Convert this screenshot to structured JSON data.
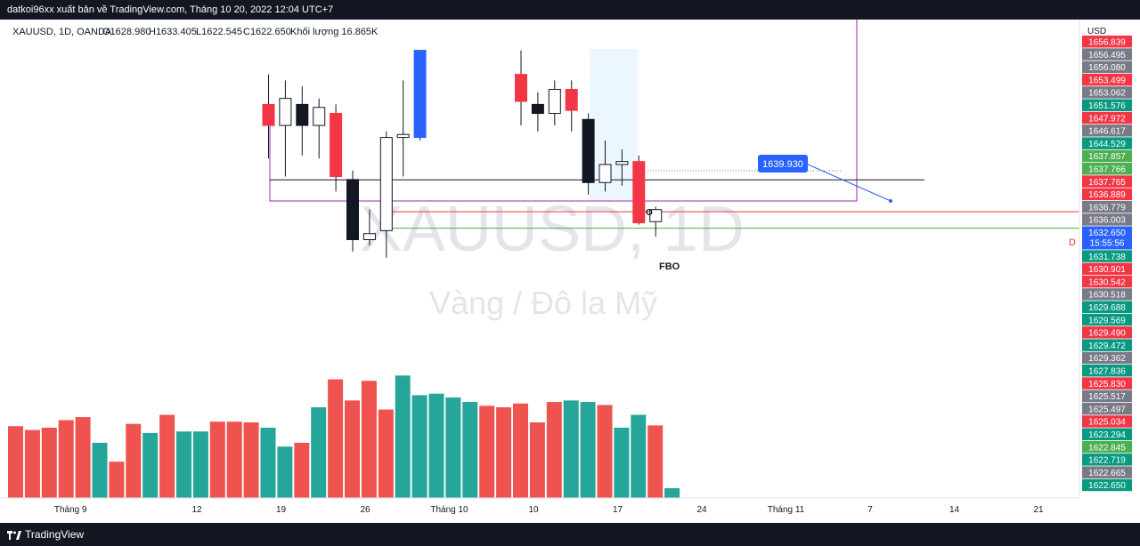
{
  "header": {
    "attribution": "datkoi96xx xuất bản về TradingView.com, Tháng 10 20, 2022 12:04 UTC+7"
  },
  "footer": {
    "brand": "TradingView"
  },
  "legend": {
    "symbol_line": "XAUUSD, 1D, OANDA",
    "open": "O1628.980",
    "high": "H1633.405",
    "low": "L1622.545",
    "close": "C1622.650",
    "volume": "Khối lượng 16.865K"
  },
  "watermark": {
    "symbol": "XAUUSD, 1D",
    "description": "Vàng / Đô la Mỹ"
  },
  "price_axis": {
    "currency": "USD",
    "labels": [
      {
        "text": "1656.839",
        "color": "#f23645"
      },
      {
        "text": "1656.495",
        "color": "#787b86"
      },
      {
        "text": "1656.080",
        "color": "#787b86"
      },
      {
        "text": "1653.499",
        "color": "#f23645"
      },
      {
        "text": "1653.062",
        "color": "#787b86"
      },
      {
        "text": "1651.576",
        "color": "#089981"
      },
      {
        "text": "1647.972",
        "color": "#f23645"
      },
      {
        "text": "1646.617",
        "color": "#787b86"
      },
      {
        "text": "1644.529",
        "color": "#089981"
      },
      {
        "text": "1637.857",
        "color": "#4caf50"
      },
      {
        "text": "1637.766",
        "color": "#4caf50"
      },
      {
        "text": "1637.765",
        "color": "#f23645"
      },
      {
        "text": "1636.889",
        "color": "#f23645"
      },
      {
        "text": "1636.779",
        "color": "#787b86"
      },
      {
        "text": "1636.003",
        "color": "#787b86"
      },
      {
        "text": "1632.650",
        "color": "#2962ff",
        "sub": "15:55:56"
      },
      {
        "text": "1631.738",
        "color": "#089981"
      },
      {
        "text": "1630.901",
        "color": "#f23645"
      },
      {
        "text": "1630.542",
        "color": "#f23645"
      },
      {
        "text": "1630.518",
        "color": "#787b86"
      },
      {
        "text": "1629.688",
        "color": "#089981"
      },
      {
        "text": "1629.569",
        "color": "#089981"
      },
      {
        "text": "1629.490",
        "color": "#f23645"
      },
      {
        "text": "1629.472",
        "color": "#089981"
      },
      {
        "text": "1629.362",
        "color": "#787b86"
      },
      {
        "text": "1627.836",
        "color": "#089981"
      },
      {
        "text": "1625.830",
        "color": "#f23645"
      },
      {
        "text": "1625.517",
        "color": "#787b86"
      },
      {
        "text": "1625.497",
        "color": "#787b86"
      },
      {
        "text": "1625.034",
        "color": "#f23645"
      },
      {
        "text": "1623.294",
        "color": "#089981"
      },
      {
        "text": "1622.845",
        "color": "#4caf50"
      },
      {
        "text": "1622.719",
        "color": "#089981"
      },
      {
        "text": "1622.665",
        "color": "#787b86"
      },
      {
        "text": "1622.650",
        "color": "#089981"
      }
    ]
  },
  "annotations": {
    "price_callout": "1639.930",
    "fbo": "FBO",
    "o_mark": "O",
    "d_mark": "D"
  },
  "colors": {
    "up": "#089981",
    "down": "#f23645",
    "accent": "#2962ff",
    "purple": "#9c27b0",
    "dark": "#131722"
  },
  "chart_data": {
    "type": "candlestick",
    "candles": [
      {
        "index": 15,
        "open": 1655,
        "high": 1672,
        "low": 1644,
        "close": 1662,
        "direction": "down"
      },
      {
        "index": 16,
        "open": 1655,
        "high": 1670,
        "low": 1638,
        "close": 1664,
        "direction": "up"
      },
      {
        "index": 17,
        "open": 1662,
        "high": 1668,
        "low": 1645,
        "close": 1655,
        "direction": "down"
      },
      {
        "index": 18,
        "open": 1655,
        "high": 1664,
        "low": 1644,
        "close": 1661,
        "direction": "up"
      },
      {
        "index": 19,
        "open": 1659,
        "high": 1662,
        "low": 1633,
        "close": 1638,
        "direction": "down"
      },
      {
        "index": 20,
        "open": 1637,
        "high": 1640,
        "low": 1613,
        "close": 1617,
        "direction": "down"
      },
      {
        "index": 21,
        "open": 1619,
        "high": 1627,
        "low": 1615,
        "close": 1617,
        "direction": "up"
      },
      {
        "index": 22,
        "open": 1620,
        "high": 1653,
        "low": 1611,
        "close": 1651,
        "direction": "up"
      },
      {
        "index": 23,
        "open": 1651,
        "high": 1670,
        "low": 1638,
        "close": 1652,
        "direction": "up"
      },
      {
        "index": 24,
        "open": 1651,
        "high": 1680,
        "low": 1650,
        "close": 1680,
        "direction": "up"
      },
      {
        "index": 30,
        "open": 1672,
        "high": 1680,
        "low": 1655,
        "close": 1663,
        "direction": "down"
      },
      {
        "index": 31,
        "open": 1662,
        "high": 1666,
        "low": 1653,
        "close": 1659,
        "direction": "down"
      },
      {
        "index": 32,
        "open": 1659,
        "high": 1670,
        "low": 1655,
        "close": 1667,
        "direction": "up"
      },
      {
        "index": 33,
        "open": 1667,
        "high": 1670,
        "low": 1653,
        "close": 1660,
        "direction": "down"
      },
      {
        "index": 34,
        "open": 1657,
        "high": 1659,
        "low": 1632,
        "close": 1636,
        "direction": "down"
      },
      {
        "index": 35,
        "open": 1636,
        "high": 1650,
        "low": 1633,
        "close": 1642,
        "direction": "up"
      },
      {
        "index": 36,
        "open": 1642,
        "high": 1647,
        "low": 1635,
        "close": 1643,
        "direction": "up"
      },
      {
        "index": 37,
        "open": 1643,
        "high": 1645,
        "low": 1622,
        "close": 1622.6,
        "direction": "down"
      },
      {
        "index": 38,
        "open": 1623,
        "high": 1628,
        "low": 1618,
        "close": 1627,
        "direction": "up"
      }
    ],
    "volume_bars": [
      {
        "index": 0,
        "direction": "down",
        "value": 95
      },
      {
        "index": 1,
        "direction": "down",
        "value": 90
      },
      {
        "index": 2,
        "direction": "down",
        "value": 93
      },
      {
        "index": 3,
        "direction": "down",
        "value": 103
      },
      {
        "index": 4,
        "direction": "down",
        "value": 107
      },
      {
        "index": 5,
        "direction": "up",
        "value": 73
      },
      {
        "index": 6,
        "direction": "down",
        "value": 48
      },
      {
        "index": 7,
        "direction": "down",
        "value": 98
      },
      {
        "index": 8,
        "direction": "up",
        "value": 86
      },
      {
        "index": 9,
        "direction": "down",
        "value": 110
      },
      {
        "index": 10,
        "direction": "up",
        "value": 88
      },
      {
        "index": 11,
        "direction": "up",
        "value": 88
      },
      {
        "index": 12,
        "direction": "down",
        "value": 101
      },
      {
        "index": 13,
        "direction": "down",
        "value": 101
      },
      {
        "index": 14,
        "direction": "down",
        "value": 100
      },
      {
        "index": 15,
        "direction": "up",
        "value": 93
      },
      {
        "index": 16,
        "direction": "up",
        "value": 68
      },
      {
        "index": 17,
        "direction": "down",
        "value": 73
      },
      {
        "index": 18,
        "direction": "up",
        "value": 120
      },
      {
        "index": 19,
        "direction": "down",
        "value": 157
      },
      {
        "index": 20,
        "direction": "down",
        "value": 129
      },
      {
        "index": 21,
        "direction": "down",
        "value": 155
      },
      {
        "index": 22,
        "direction": "down",
        "value": 117
      },
      {
        "index": 23,
        "direction": "up",
        "value": 162
      },
      {
        "index": 24,
        "direction": "up",
        "value": 136
      },
      {
        "index": 25,
        "direction": "up",
        "value": 138
      },
      {
        "index": 26,
        "direction": "up",
        "value": 133
      },
      {
        "index": 27,
        "direction": "up",
        "value": 127
      },
      {
        "index": 28,
        "direction": "down",
        "value": 122
      },
      {
        "index": 29,
        "direction": "down",
        "value": 120
      },
      {
        "index": 30,
        "direction": "down",
        "value": 125
      },
      {
        "index": 31,
        "direction": "down",
        "value": 100
      },
      {
        "index": 32,
        "direction": "down",
        "value": 127
      },
      {
        "index": 33,
        "direction": "up",
        "value": 129
      },
      {
        "index": 34,
        "direction": "up",
        "value": 127
      },
      {
        "index": 35,
        "direction": "down",
        "value": 123
      },
      {
        "index": 36,
        "direction": "up",
        "value": 93
      },
      {
        "index": 37,
        "direction": "up",
        "value": 110
      },
      {
        "index": 38,
        "direction": "down",
        "value": 96
      },
      {
        "index": 39,
        "direction": "up",
        "value": 13
      }
    ],
    "levels": [
      {
        "price": 1636.9,
        "color": "#131722",
        "name": "resistance-line"
      },
      {
        "price": 1626.3,
        "color": "#f23645",
        "name": "d-line"
      },
      {
        "price": 1620.8,
        "color": "#4caf50",
        "name": "low-line"
      }
    ],
    "x_ticks": [
      {
        "index": 2.5,
        "label": "Tháng 9"
      },
      {
        "index": 10,
        "label": "12"
      },
      {
        "index": 15,
        "label": "19"
      },
      {
        "index": 20,
        "label": "26"
      },
      {
        "index": 25,
        "label": "Tháng 10"
      },
      {
        "index": 30,
        "label": "10"
      },
      {
        "index": 35,
        "label": "17"
      },
      {
        "index": 40,
        "label": "24"
      },
      {
        "index": 45,
        "label": "Tháng 11"
      },
      {
        "index": 50,
        "label": "7"
      },
      {
        "index": 55,
        "label": "14"
      },
      {
        "index": 60,
        "label": "21"
      }
    ],
    "callout_price": 1639.93
  }
}
